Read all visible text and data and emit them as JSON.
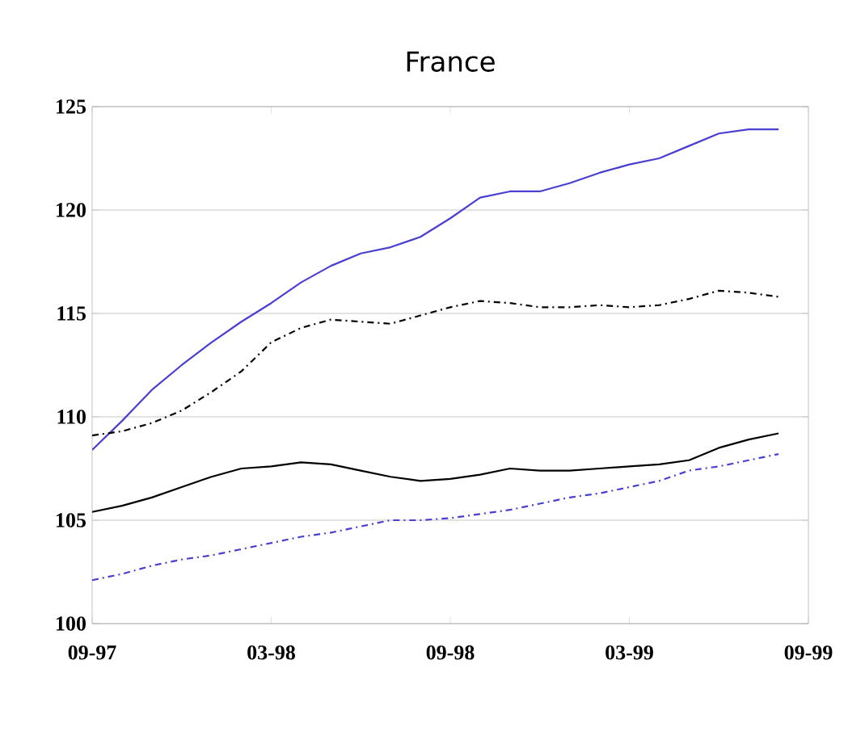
{
  "chart_data": {
    "type": "line",
    "title": "France",
    "x": [
      "1997-09",
      "1997-10",
      "1997-11",
      "1997-12",
      "1998-01",
      "1998-02",
      "1998-03",
      "1998-04",
      "1998-05",
      "1998-06",
      "1998-07",
      "1998-08",
      "1998-09",
      "1998-10",
      "1998-11",
      "1998-12",
      "1999-01",
      "1999-02",
      "1999-03",
      "1999-04",
      "1999-05",
      "1999-06",
      "1999-07",
      "1999-08"
    ],
    "series": [
      {
        "color": "#4a3fd0",
        "line_style": "solid",
        "values": [
          108.4,
          109.8,
          111.3,
          112.5,
          113.6,
          114.6,
          115.5,
          116.5,
          117.3,
          117.9,
          118.2,
          118.7,
          119.6,
          120.6,
          120.9,
          120.9,
          121.3,
          121.8,
          122.2,
          122.5,
          123.1,
          123.7,
          123.9,
          123.9
        ]
      },
      {
        "color": "#000000",
        "line_style": "dashed",
        "values": [
          109.1,
          109.3,
          109.7,
          110.3,
          111.2,
          112.2,
          113.6,
          114.3,
          114.7,
          114.6,
          114.5,
          114.9,
          115.3,
          115.6,
          115.5,
          115.3,
          115.3,
          115.4,
          115.3,
          115.4,
          115.7,
          116.1,
          116.0,
          115.8
        ]
      },
      {
        "color": "#000000",
        "line_style": "solid",
        "values": [
          105.4,
          105.7,
          106.1,
          106.6,
          107.1,
          107.5,
          107.6,
          107.8,
          107.7,
          107.4,
          107.1,
          106.9,
          107.0,
          107.2,
          107.5,
          107.4,
          107.4,
          107.5,
          107.6,
          107.7,
          107.9,
          108.5,
          108.9,
          109.2
        ]
      },
      {
        "color": "#4a3fd0",
        "line_style": "dashed",
        "values": [
          102.1,
          102.4,
          102.8,
          103.1,
          103.3,
          103.6,
          103.9,
          104.2,
          104.4,
          104.7,
          105.0,
          105.0,
          105.1,
          105.3,
          105.5,
          105.8,
          106.1,
          106.3,
          106.6,
          106.9,
          107.4,
          107.6,
          107.9,
          108.2
        ]
      }
    ],
    "xlim": [
      "1997-09",
      "1999-09"
    ],
    "xticks": [
      {
        "value": "1997-09",
        "label": "09-97"
      },
      {
        "value": "1998-03",
        "label": "03-98"
      },
      {
        "value": "1998-09",
        "label": "09-98"
      },
      {
        "value": "1999-03",
        "label": "03-99"
      },
      {
        "value": "1999-09",
        "label": "09-99"
      }
    ],
    "ylim": [
      100,
      125
    ],
    "yticks": [
      100,
      105,
      110,
      115,
      120,
      125
    ],
    "grid": "y",
    "marker": "none"
  }
}
